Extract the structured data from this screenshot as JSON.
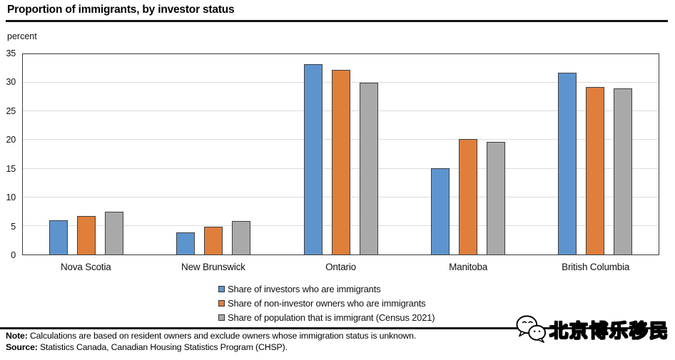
{
  "header": {
    "title": "Proportion of immigrants, by investor status"
  },
  "chart_data": {
    "type": "bar",
    "title": "Proportion of immigrants, by investor status",
    "xlabel": "",
    "ylabel": "percent",
    "ylim": [
      0,
      35
    ],
    "ytick_step": 5,
    "grid": "horizontal",
    "legend_position": "bottom-center",
    "categories": [
      "Nova Scotia",
      "New Brunswick",
      "Ontario",
      "Manitoba",
      "British Columbia"
    ],
    "series": [
      {
        "name": "Share of investors who are immigrants",
        "color": "#5E94CE",
        "values": [
          6.0,
          3.9,
          33.2,
          15.1,
          31.8
        ]
      },
      {
        "name": "Share of non-investor owners who are immigrants",
        "color": "#E07E3C",
        "values": [
          6.7,
          4.8,
          32.2,
          20.2,
          29.3
        ]
      },
      {
        "name": "Share of population that is immigrant (Census 2021)",
        "color": "#A9A9A9",
        "values": [
          7.5,
          5.8,
          30.0,
          19.7,
          29.0
        ]
      }
    ]
  },
  "footnotes": {
    "note_label": "Note:",
    "note_text": " Calculations are based on resident owners and exclude owners whose immigration status is unknown.",
    "source_label": "Source:",
    "source_text": " Statistics Canada, Canadian Housing Statistics Program (CHSP)."
  },
  "watermark": {
    "icon": "wechat-icon",
    "text": "北京博乐移民"
  }
}
